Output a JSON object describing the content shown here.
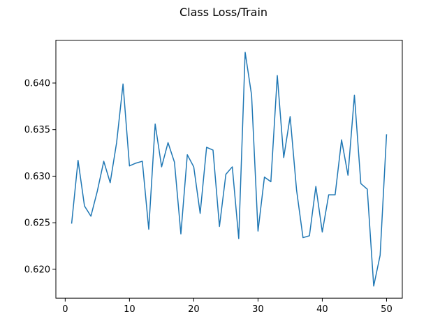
{
  "chart_data": {
    "type": "line",
    "title": "Class Loss/Train",
    "xlabel": "",
    "ylabel": "",
    "xlim": [
      -1.45,
      52.45
    ],
    "ylim": [
      0.6169,
      0.6446
    ],
    "xticks": [
      0,
      10,
      20,
      30,
      40,
      50
    ],
    "yticks": [
      0.62,
      0.625,
      0.63,
      0.635,
      0.64
    ],
    "xtick_labels": [
      "0",
      "10",
      "20",
      "30",
      "40",
      "50"
    ],
    "ytick_labels": [
      "0.620",
      "0.625",
      "0.630",
      "0.635",
      "0.640"
    ],
    "grid": false,
    "series": [
      {
        "color": "#1f77b4",
        "x": [
          1,
          2,
          3,
          4,
          5,
          6,
          7,
          8,
          9,
          10,
          11,
          12,
          13,
          14,
          15,
          16,
          17,
          18,
          19,
          20,
          21,
          22,
          23,
          24,
          25,
          26,
          27,
          28,
          29,
          30,
          31,
          32,
          33,
          34,
          35,
          36,
          37,
          38,
          39,
          40,
          41,
          42,
          43,
          44,
          45,
          46,
          47,
          48,
          49,
          50
        ],
        "y": [
          0.6249,
          0.6317,
          0.6268,
          0.6257,
          0.6284,
          0.6316,
          0.6293,
          0.6336,
          0.6399,
          0.6311,
          0.6314,
          0.6316,
          0.6243,
          0.6356,
          0.631,
          0.6336,
          0.6315,
          0.6238,
          0.6323,
          0.631,
          0.626,
          0.6331,
          0.6328,
          0.6246,
          0.6302,
          0.631,
          0.6233,
          0.6433,
          0.6387,
          0.6241,
          0.6299,
          0.6294,
          0.6408,
          0.632,
          0.6364,
          0.6285,
          0.6234,
          0.6236,
          0.6289,
          0.624,
          0.628,
          0.628,
          0.6339,
          0.6301,
          0.6387,
          0.6292,
          0.6286,
          0.6182,
          0.6215,
          0.6345
        ]
      }
    ]
  }
}
